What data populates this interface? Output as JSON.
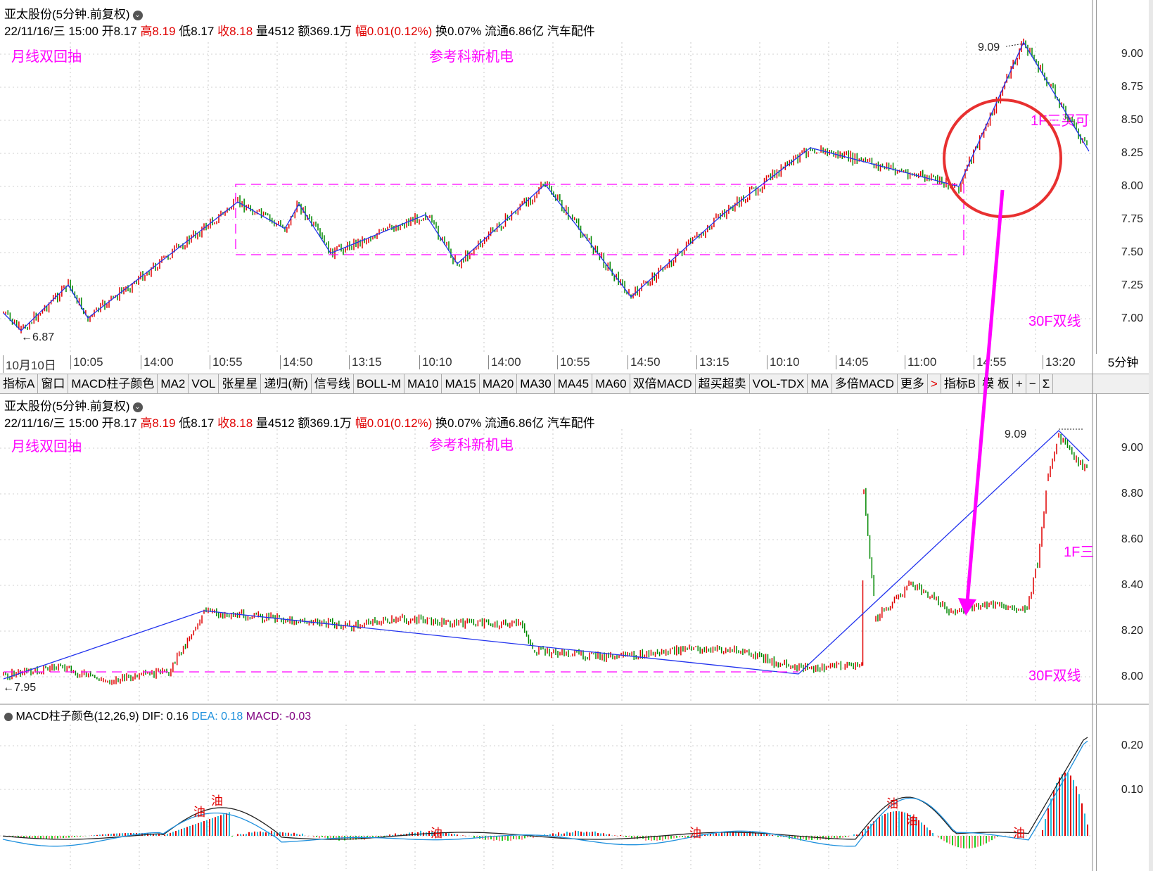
{
  "header": {
    "stock_name": "亚太股份(5分钟.前复权)",
    "info_prefix": "22/11/16/三 15:00 开8.17 ",
    "high": "高8.19",
    "low": " 低8.17 ",
    "close": "收8.18",
    "vol": " 量4512 额369.1万 ",
    "change": "幅0.01(0.12%)",
    "rest": " 换0.07% 流通6.86亿 汽车配件"
  },
  "annotations": {
    "top_left": "月线双回抽",
    "top_center": "参考科新机电",
    "right_1f": "1F三买可",
    "right_1f_short": "1F三",
    "right_30f": "30F双线",
    "peak_label": "9.09",
    "low_label_top": "←6.87",
    "low_label_bottom": "←7.95"
  },
  "top_axis_ticks": [
    "9.00",
    "8.75",
    "8.50",
    "8.25",
    "8.00",
    "7.75",
    "7.50",
    "7.25",
    "7.00"
  ],
  "mid_axis_ticks": [
    "9.00",
    "8.80",
    "8.60",
    "8.40",
    "8.20",
    "8.00"
  ],
  "macd_axis_ticks": [
    "0.20",
    "0.10"
  ],
  "time_labels": [
    "10月10日",
    "10:05",
    "14:00",
    "10:55",
    "14:50",
    "13:15",
    "10:10",
    "14:00",
    "10:55",
    "14:50",
    "13:15",
    "10:10",
    "14:05",
    "11:00",
    "14:55",
    "13:20"
  ],
  "period_label": "5分钟",
  "tabs": [
    "指标A",
    "窗口",
    "MACD柱子颜色",
    "MA2",
    "VOL",
    "张星星",
    "递归(新)",
    "信号线",
    "BOLL-M",
    "MA10",
    "MA15",
    "MA20",
    "MA30",
    "MA45",
    "MA60",
    "双倍MACD",
    "超买超卖",
    "VOL-TDX",
    "MA",
    "多倍MACD",
    "更多",
    ">",
    "指标B",
    "模 板",
    "+",
    "−",
    "Σ"
  ],
  "macd": {
    "title": "MACD柱子颜色(12,26,9)",
    "dif": "DIF: 0.16",
    "dea": "DEA: 0.18",
    "macd": "MACD: -0.03",
    "signal_label": "油"
  },
  "colors": {
    "up": "#e00000",
    "down": "#008800",
    "zigzag": "#2233ee",
    "magenta": "#ff00ff",
    "circle": "#e83030",
    "dea": "#1e90dd"
  }
}
